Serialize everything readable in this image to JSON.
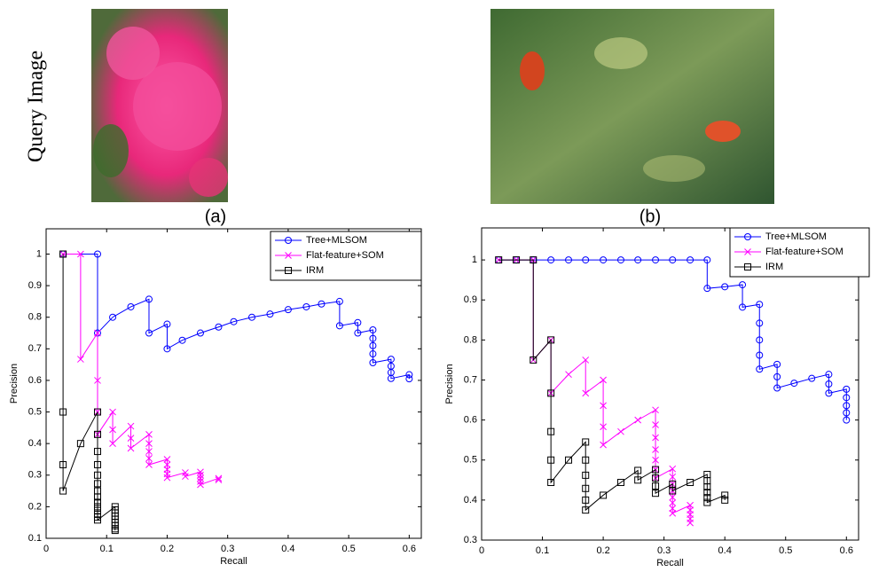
{
  "query_label": "Query Image",
  "panel_labels": [
    "(a)",
    "(b)"
  ],
  "chart_data": [
    {
      "type": "line",
      "xlabel": "Recall",
      "ylabel": "Precision",
      "xlim": [
        0,
        0.62
      ],
      "ylim": [
        0.1,
        1.08
      ],
      "xticks": [
        0,
        0.1,
        0.2,
        0.3,
        0.4,
        0.5,
        0.6
      ],
      "yticks": [
        0.1,
        0.2,
        0.3,
        0.4,
        0.5,
        0.6,
        0.7,
        0.8,
        0.9,
        1
      ],
      "legend": "upper right",
      "series": [
        {
          "name": "Tree+MLSOM",
          "color": "#0000ff",
          "marker": "circle",
          "x": [
            0.028,
            0.085,
            0.085,
            0.11,
            0.14,
            0.17,
            0.17,
            0.2,
            0.2,
            0.225,
            0.255,
            0.285,
            0.31,
            0.34,
            0.37,
            0.4,
            0.43,
            0.455,
            0.485,
            0.485,
            0.515,
            0.515,
            0.54,
            0.54,
            0.54,
            0.54,
            0.54,
            0.57,
            0.57,
            0.57,
            0.57,
            0.6,
            0.6
          ],
          "values": [
            1,
            1,
            0.75,
            0.8,
            0.833,
            0.857,
            0.75,
            0.778,
            0.7,
            0.727,
            0.75,
            0.769,
            0.786,
            0.8,
            0.81,
            0.824,
            0.833,
            0.842,
            0.85,
            0.773,
            0.783,
            0.75,
            0.76,
            0.733,
            0.71,
            0.684,
            0.656,
            0.667,
            0.645,
            0.625,
            0.606,
            0.618,
            0.605
          ]
        },
        {
          "name": "Flat-feature+SOM",
          "color": "#ff00ff",
          "marker": "x",
          "x": [
            0.028,
            0.057,
            0.057,
            0.085,
            0.085,
            0.085,
            0.085,
            0.11,
            0.11,
            0.11,
            0.14,
            0.14,
            0.14,
            0.17,
            0.17,
            0.17,
            0.17,
            0.17,
            0.2,
            0.2,
            0.2,
            0.2,
            0.2,
            0.23,
            0.23,
            0.255,
            0.255,
            0.255,
            0.255,
            0.255,
            0.285,
            0.285
          ],
          "values": [
            1,
            1,
            0.667,
            0.75,
            0.6,
            0.5,
            0.429,
            0.5,
            0.444,
            0.4,
            0.455,
            0.417,
            0.385,
            0.429,
            0.4,
            0.375,
            0.353,
            0.333,
            0.35,
            0.333,
            0.318,
            0.304,
            0.292,
            0.308,
            0.296,
            0.31,
            0.3,
            0.29,
            0.28,
            0.27,
            0.29,
            0.285
          ]
        },
        {
          "name": "IRM",
          "color": "#000000",
          "marker": "square",
          "x": [
            0.028,
            0.028,
            0.028,
            0.028,
            0.057,
            0.085,
            0.085,
            0.085,
            0.085,
            0.085,
            0.085,
            0.085,
            0.085,
            0.085,
            0.085,
            0.085,
            0.085,
            0.085,
            0.085,
            0.114,
            0.114,
            0.114,
            0.114,
            0.114,
            0.114,
            0.114,
            0.114,
            0.114
          ],
          "values": [
            1,
            0.5,
            0.333,
            0.25,
            0.4,
            0.5,
            0.429,
            0.375,
            0.333,
            0.3,
            0.273,
            0.25,
            0.231,
            0.214,
            0.2,
            0.188,
            0.176,
            0.167,
            0.158,
            0.2,
            0.19,
            0.18,
            0.17,
            0.16,
            0.15,
            0.14,
            0.13,
            0.125
          ]
        }
      ]
    },
    {
      "type": "line",
      "xlabel": "Recall",
      "ylabel": "Precision",
      "xlim": [
        0,
        0.62
      ],
      "ylim": [
        0.3,
        1.08
      ],
      "xticks": [
        0,
        0.1,
        0.2,
        0.3,
        0.4,
        0.5,
        0.6
      ],
      "yticks": [
        0.3,
        0.4,
        0.5,
        0.6,
        0.7,
        0.8,
        0.9,
        1
      ],
      "legend": "upper right",
      "series": [
        {
          "name": "Tree+MLSOM",
          "color": "#0000ff",
          "marker": "circle",
          "x": [
            0.028,
            0.057,
            0.085,
            0.114,
            0.143,
            0.171,
            0.2,
            0.229,
            0.257,
            0.286,
            0.314,
            0.343,
            0.371,
            0.371,
            0.4,
            0.429,
            0.429,
            0.457,
            0.457,
            0.457,
            0.457,
            0.457,
            0.486,
            0.486,
            0.486,
            0.514,
            0.543,
            0.571,
            0.571,
            0.571,
            0.6,
            0.6,
            0.6,
            0.6,
            0.6
          ],
          "values": [
            1,
            1,
            1,
            1,
            1,
            1,
            1,
            1,
            1,
            1,
            1,
            1,
            1,
            0.929,
            0.933,
            0.938,
            0.882,
            0.889,
            0.842,
            0.8,
            0.762,
            0.727,
            0.739,
            0.708,
            0.68,
            0.692,
            0.704,
            0.714,
            0.69,
            0.667,
            0.677,
            0.656,
            0.636,
            0.618,
            0.6
          ]
        },
        {
          "name": "Flat-feature+SOM",
          "color": "#ff00ff",
          "marker": "x",
          "x": [
            0.028,
            0.057,
            0.085,
            0.085,
            0.114,
            0.114,
            0.143,
            0.171,
            0.171,
            0.2,
            0.2,
            0.2,
            0.2,
            0.229,
            0.257,
            0.286,
            0.286,
            0.286,
            0.286,
            0.286,
            0.286,
            0.286,
            0.314,
            0.314,
            0.314,
            0.314,
            0.314,
            0.314,
            0.314,
            0.314,
            0.343,
            0.343,
            0.343,
            0.343,
            0.343
          ],
          "values": [
            1,
            1,
            1,
            0.75,
            0.8,
            0.667,
            0.714,
            0.75,
            0.667,
            0.7,
            0.636,
            0.583,
            0.538,
            0.571,
            0.6,
            0.625,
            0.588,
            0.556,
            0.526,
            0.5,
            0.476,
            0.455,
            0.478,
            0.458,
            0.44,
            0.423,
            0.407,
            0.393,
            0.379,
            0.367,
            0.387,
            0.375,
            0.364,
            0.353,
            0.343
          ]
        },
        {
          "name": "IRM",
          "color": "#000000",
          "marker": "square",
          "x": [
            0.028,
            0.057,
            0.085,
            0.085,
            0.114,
            0.114,
            0.114,
            0.114,
            0.114,
            0.143,
            0.171,
            0.171,
            0.171,
            0.171,
            0.171,
            0.171,
            0.2,
            0.229,
            0.257,
            0.257,
            0.286,
            0.286,
            0.286,
            0.286,
            0.314,
            0.314,
            0.343,
            0.371,
            0.371,
            0.371,
            0.371,
            0.371,
            0.371,
            0.4,
            0.4
          ],
          "values": [
            1,
            1,
            1,
            0.75,
            0.8,
            0.667,
            0.571,
            0.5,
            0.444,
            0.5,
            0.545,
            0.5,
            0.462,
            0.429,
            0.4,
            0.375,
            0.412,
            0.444,
            0.474,
            0.45,
            0.476,
            0.455,
            0.435,
            0.417,
            0.44,
            0.423,
            0.444,
            0.464,
            0.448,
            0.433,
            0.419,
            0.406,
            0.394,
            0.412,
            0.4
          ]
        }
      ]
    }
  ]
}
